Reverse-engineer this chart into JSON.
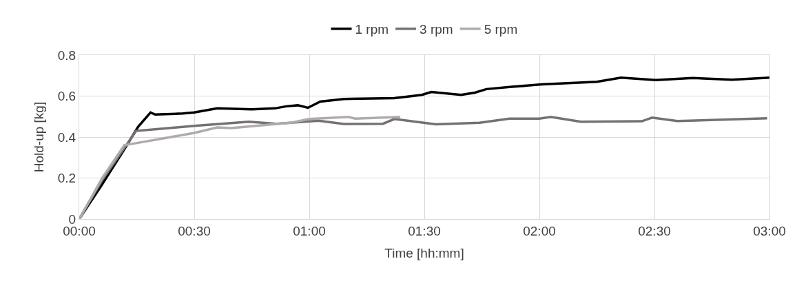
{
  "chart_data": {
    "type": "line",
    "xlabel": "Time [hh:mm]",
    "ylabel": "Hold-up [kg]",
    "xlim": [
      0,
      3
    ],
    "ylim": [
      0,
      0.8
    ],
    "xticks": [
      {
        "value": 0,
        "label": "00:00"
      },
      {
        "value": 0.5,
        "label": "00:30"
      },
      {
        "value": 1,
        "label": "01:00"
      },
      {
        "value": 1.5,
        "label": "01:30"
      },
      {
        "value": 2,
        "label": "02:00"
      },
      {
        "value": 2.5,
        "label": "02:30"
      },
      {
        "value": 3,
        "label": "03:00"
      }
    ],
    "yticks": [
      0,
      0.2,
      0.4,
      0.6,
      0.8
    ],
    "grid": true,
    "legend": "top",
    "line_style": "solid",
    "marker": "none",
    "series": [
      {
        "name": "1 rpm",
        "color": "#000000",
        "x": [
          0,
          0.1,
          0.196,
          0.256,
          0.31,
          0.33,
          0.45,
          0.5,
          0.55,
          0.6,
          0.75,
          0.85,
          0.9,
          0.95,
          0.994,
          1.048,
          1.15,
          1.37,
          1.49,
          1.53,
          1.66,
          1.72,
          1.77,
          1.88,
          2.01,
          2.25,
          2.355,
          2.506,
          2.666,
          2.837,
          3.0
        ],
        "values": [
          0,
          0.17,
          0.34,
          0.45,
          0.52,
          0.51,
          0.515,
          0.52,
          0.53,
          0.54,
          0.535,
          0.54,
          0.55,
          0.555,
          0.543,
          0.573,
          0.586,
          0.59,
          0.606,
          0.62,
          0.606,
          0.617,
          0.634,
          0.645,
          0.657,
          0.67,
          0.69,
          0.678,
          0.688,
          0.68,
          0.69
        ]
      },
      {
        "name": "3 rpm",
        "color": "#767171",
        "x": [
          0,
          0.1,
          0.247,
          0.355,
          0.5,
          0.737,
          0.857,
          1.04,
          1.15,
          1.32,
          1.37,
          1.55,
          1.74,
          1.87,
          2.0,
          2.05,
          2.18,
          2.445,
          2.49,
          2.6,
          2.99
        ],
        "values": [
          0,
          0.19,
          0.43,
          0.44,
          0.455,
          0.475,
          0.465,
          0.48,
          0.464,
          0.465,
          0.488,
          0.462,
          0.47,
          0.49,
          0.49,
          0.498,
          0.475,
          0.477,
          0.495,
          0.478,
          0.492
        ]
      },
      {
        "name": "5 rpm",
        "color": "#afabab",
        "x": [
          0,
          0.1,
          0.196,
          0.277,
          0.5,
          0.6,
          0.66,
          0.857,
          0.919,
          1.0,
          1.17,
          1.2,
          1.395
        ],
        "values": [
          0,
          0.2,
          0.36,
          0.376,
          0.42,
          0.447,
          0.444,
          0.464,
          0.47,
          0.488,
          0.498,
          0.49,
          0.498
        ]
      }
    ]
  }
}
